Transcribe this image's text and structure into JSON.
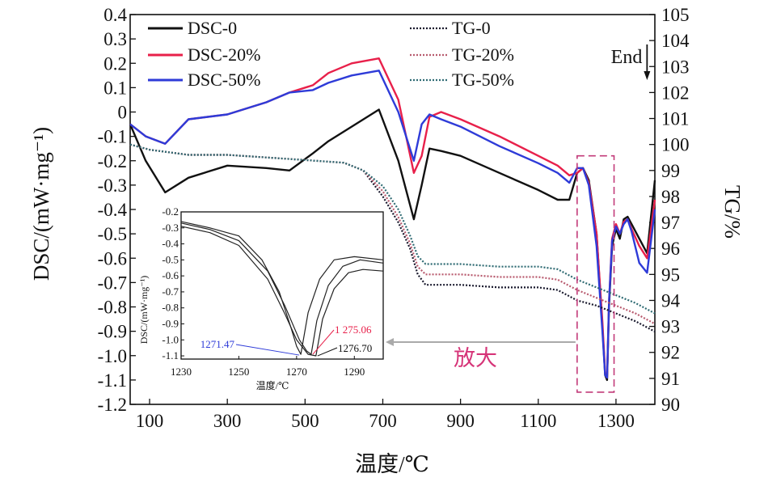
{
  "colors": {
    "dsc0": "#111111",
    "dsc20": "#e8204a",
    "dsc50": "#2e3bd8",
    "tg0": "#1a1a2e",
    "tg20": "#b85a6e",
    "tg50": "#2f6b73",
    "box": "#c23b7a",
    "arrow": "#aaaaaa",
    "zoom": "#d63478"
  },
  "chart_data": [
    {
      "type": "line",
      "xlabel": "温度/℃",
      "ylabel": "DSC/(mW·mg⁻¹)",
      "y2label": "TG/%",
      "xlim": [
        50,
        1400
      ],
      "ylim": [
        -1.2,
        0.4
      ],
      "y2lim": [
        90,
        105
      ],
      "xticks": [
        100,
        300,
        500,
        700,
        900,
        1100,
        1300
      ],
      "yticks": [
        "0.4",
        "0.3",
        "0.2",
        "0.1",
        "0",
        "-0.1",
        "-0.2",
        "-0.3",
        "-0.4",
        "-0.5",
        "-0.6",
        "-0.7",
        "-0.8",
        "-0.9",
        "-1.0",
        "-1.1",
        "-1.2"
      ],
      "y2ticks": [
        105,
        104,
        103,
        102,
        101,
        100,
        99,
        98,
        97,
        96,
        95,
        94,
        93,
        92,
        91,
        90
      ],
      "legend_placement": "top",
      "series": [
        {
          "name": "DSC-0",
          "axis": "left",
          "style": "solid",
          "color_key": "dsc0",
          "x": [
            50,
            90,
            140,
            200,
            300,
            400,
            460,
            520,
            560,
            620,
            690,
            740,
            780,
            800,
            820,
            850,
            900,
            1000,
            1100,
            1150,
            1180,
            1200,
            1215,
            1230,
            1250,
            1265,
            1272,
            1277,
            1282,
            1290,
            1300,
            1310,
            1320,
            1330,
            1340,
            1360,
            1380,
            1400
          ],
          "y": [
            -0.05,
            -0.2,
            -0.33,
            -0.27,
            -0.22,
            -0.23,
            -0.24,
            -0.17,
            -0.12,
            -0.06,
            0.01,
            -0.2,
            -0.44,
            -0.3,
            -0.15,
            -0.16,
            -0.18,
            -0.25,
            -0.32,
            -0.36,
            -0.36,
            -0.25,
            -0.23,
            -0.28,
            -0.5,
            -0.88,
            -1.08,
            -1.1,
            -0.8,
            -0.55,
            -0.48,
            -0.52,
            -0.44,
            -0.43,
            -0.46,
            -0.52,
            -0.58,
            -0.28
          ]
        },
        {
          "name": "DSC-20%",
          "axis": "left",
          "style": "solid",
          "color_key": "dsc20",
          "x": [
            50,
            90,
            140,
            200,
            300,
            400,
            460,
            520,
            560,
            620,
            690,
            740,
            780,
            800,
            820,
            850,
            900,
            1000,
            1100,
            1150,
            1180,
            1200,
            1215,
            1230,
            1250,
            1265,
            1272,
            1277,
            1282,
            1290,
            1300,
            1310,
            1320,
            1330,
            1340,
            1360,
            1380,
            1400
          ],
          "y": [
            -0.05,
            -0.1,
            -0.13,
            -0.03,
            -0.01,
            0.04,
            0.08,
            0.11,
            0.16,
            0.2,
            0.22,
            0.05,
            -0.25,
            -0.18,
            -0.02,
            0.0,
            -0.03,
            -0.1,
            -0.18,
            -0.22,
            -0.26,
            -0.25,
            -0.23,
            -0.29,
            -0.5,
            -0.86,
            -1.07,
            -1.09,
            -0.78,
            -0.52,
            -0.46,
            -0.5,
            -0.45,
            -0.44,
            -0.48,
            -0.55,
            -0.6,
            -0.36
          ]
        },
        {
          "name": "DSC-50%",
          "axis": "left",
          "style": "solid",
          "color_key": "dsc50",
          "x": [
            50,
            90,
            140,
            200,
            300,
            400,
            460,
            520,
            560,
            620,
            690,
            740,
            780,
            800,
            820,
            850,
            900,
            1000,
            1100,
            1150,
            1180,
            1200,
            1215,
            1230,
            1250,
            1265,
            1272,
            1277,
            1282,
            1290,
            1300,
            1310,
            1320,
            1330,
            1340,
            1360,
            1380,
            1400
          ],
          "y": [
            -0.05,
            -0.1,
            -0.13,
            -0.03,
            -0.01,
            0.04,
            0.08,
            0.09,
            0.12,
            0.15,
            0.17,
            0.0,
            -0.2,
            -0.05,
            -0.01,
            -0.03,
            -0.06,
            -0.14,
            -0.21,
            -0.25,
            -0.29,
            -0.23,
            -0.23,
            -0.3,
            -0.55,
            -0.9,
            -1.08,
            -1.09,
            -0.78,
            -0.53,
            -0.47,
            -0.5,
            -0.46,
            -0.44,
            -0.49,
            -0.62,
            -0.66,
            -0.4
          ]
        },
        {
          "name": "TG-0",
          "axis": "right",
          "style": "dotted",
          "color_key": "tg0",
          "x": [
            50,
            100,
            200,
            300,
            400,
            500,
            600,
            650,
            700,
            740,
            770,
            790,
            810,
            850,
            900,
            1000,
            1100,
            1150,
            1200,
            1250,
            1300,
            1350,
            1400
          ],
          "y": [
            100.0,
            99.8,
            99.6,
            99.6,
            99.5,
            99.4,
            99.3,
            99.0,
            98.0,
            97.0,
            96.0,
            95.0,
            94.6,
            94.6,
            94.6,
            94.5,
            94.5,
            94.4,
            94.0,
            93.8,
            93.5,
            93.2,
            92.8
          ]
        },
        {
          "name": "TG-20%",
          "axis": "right",
          "style": "dotted",
          "color_key": "tg20",
          "x": [
            50,
            100,
            200,
            300,
            400,
            500,
            600,
            650,
            700,
            740,
            770,
            790,
            810,
            850,
            900,
            1000,
            1100,
            1150,
            1200,
            1250,
            1300,
            1350,
            1400
          ],
          "y": [
            100.0,
            99.8,
            99.6,
            99.6,
            99.5,
            99.4,
            99.3,
            99.0,
            98.2,
            97.2,
            96.2,
            95.3,
            95.0,
            95.0,
            95.0,
            94.9,
            94.9,
            94.8,
            94.4,
            94.1,
            93.8,
            93.5,
            93.1
          ]
        },
        {
          "name": "TG-50%",
          "axis": "right",
          "style": "dotted",
          "color_key": "tg50",
          "x": [
            50,
            100,
            200,
            300,
            400,
            500,
            600,
            650,
            700,
            740,
            770,
            790,
            810,
            850,
            900,
            1000,
            1100,
            1150,
            1200,
            1250,
            1300,
            1350,
            1400
          ],
          "y": [
            100.0,
            99.8,
            99.6,
            99.6,
            99.5,
            99.4,
            99.3,
            99.0,
            98.4,
            97.5,
            96.5,
            95.7,
            95.4,
            95.4,
            95.4,
            95.3,
            95.3,
            95.2,
            94.8,
            94.5,
            94.2,
            93.9,
            93.5
          ]
        }
      ],
      "annotations": {
        "end_label": "End",
        "end_x": 1330,
        "zoom_label": "放大",
        "zoom_box": {
          "x_min": 1200,
          "x_max": 1295,
          "y_min": -1.15,
          "y_max": -0.18
        }
      }
    },
    {
      "type": "line",
      "inset": true,
      "xlabel": "温度/℃",
      "ylabel": "DSC/(mW·mg⁻¹)",
      "xlim": [
        1230,
        1300
      ],
      "ylim": [
        -1.12,
        -0.2
      ],
      "xticks": [
        1230,
        1250,
        1270,
        1290
      ],
      "yticks": [
        "-0.2",
        "-0.3",
        "-0.4",
        "-0.5",
        "-0.6",
        "-0.7",
        "-0.8",
        "-0.9",
        "-1.0",
        "-1.1"
      ],
      "series": [
        {
          "name": "DSC-0",
          "x": [
            1230,
            1240,
            1250,
            1260,
            1266,
            1270,
            1274,
            1276.7,
            1279,
            1283,
            1288,
            1293,
            1300
          ],
          "y": [
            -0.29,
            -0.33,
            -0.41,
            -0.62,
            -0.84,
            -1.0,
            -1.09,
            -1.1,
            -0.87,
            -0.68,
            -0.58,
            -0.56,
            -0.57
          ]
        },
        {
          "name": "DSC-20%",
          "x": [
            1230,
            1240,
            1250,
            1260,
            1266,
            1271,
            1273.5,
            1275.06,
            1277,
            1281,
            1286,
            1292,
            1300
          ],
          "y": [
            -0.27,
            -0.31,
            -0.38,
            -0.57,
            -0.79,
            -1.0,
            -1.07,
            -1.09,
            -0.88,
            -0.66,
            -0.54,
            -0.5,
            -0.52
          ]
        },
        {
          "name": "DSC-50%",
          "x": [
            1230,
            1240,
            1250,
            1258,
            1264,
            1268,
            1270,
            1271.47,
            1274,
            1278,
            1283,
            1290,
            1300
          ],
          "y": [
            -0.26,
            -0.3,
            -0.35,
            -0.5,
            -0.7,
            -0.92,
            -1.04,
            -1.09,
            -0.83,
            -0.62,
            -0.5,
            -0.48,
            -0.5
          ]
        }
      ],
      "annotations": [
        {
          "text": "1271.47",
          "color_key": "dsc50",
          "x": 1271.47,
          "y": -1.09
        },
        {
          "text": "1 275.06",
          "color_key": "dsc20",
          "x": 1275.06,
          "y": -1.09
        },
        {
          "text": "1276.70",
          "color_key": "dsc0",
          "x": 1276.7,
          "y": -1.1
        }
      ]
    }
  ]
}
